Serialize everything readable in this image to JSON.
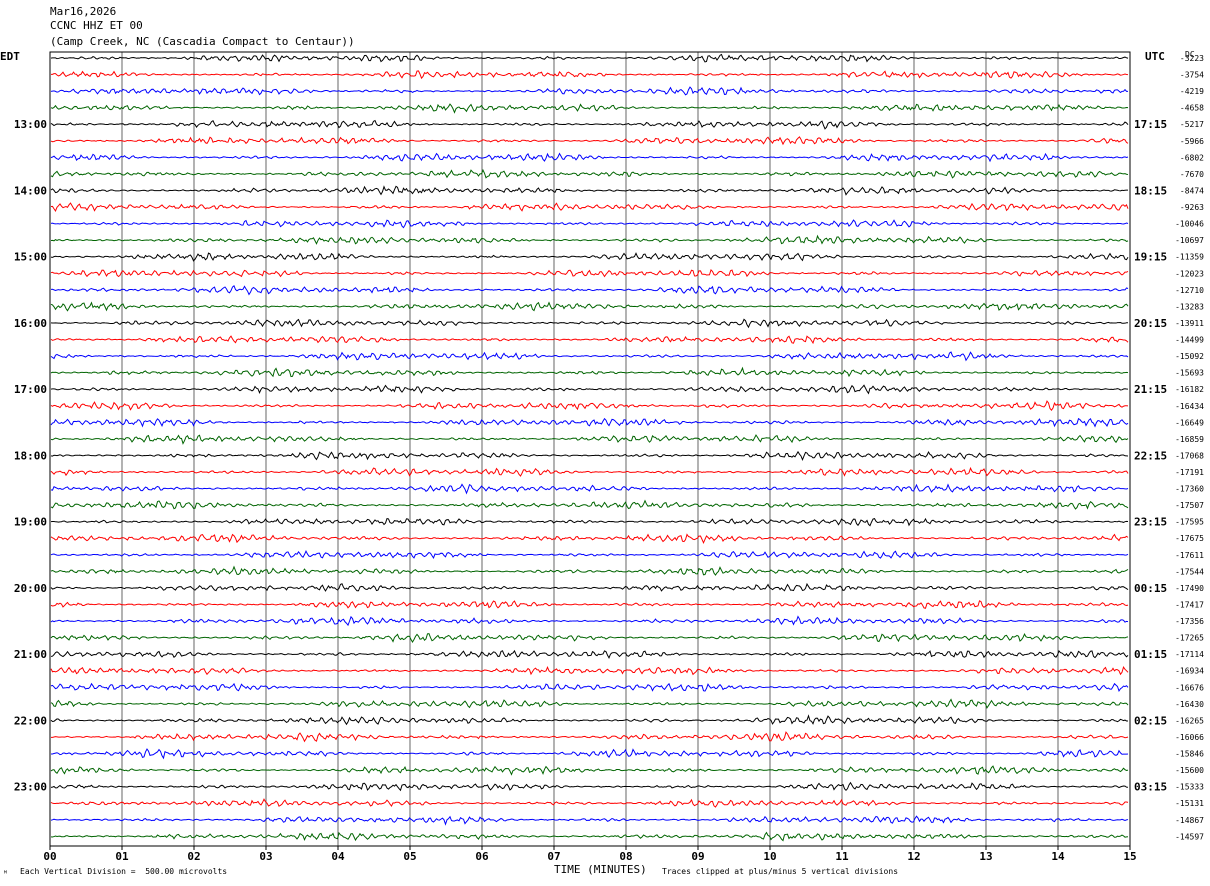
{
  "header": {
    "date": "Mar16,2026",
    "station": "CCNC HHZ ET 00",
    "location": "(Camp Creek, NC (Cascadia Compact to Centaur))"
  },
  "left_timezone": "EDT",
  "right_timezone": "UTC",
  "right_corner_label": "DC",
  "footer": {
    "scale_note": "Each Vertical Division =  500.00 microvolts",
    "clip_note": "Traces clipped at plus/minus 5 vertical divisions",
    "corner_mark": "ᴹ"
  },
  "chart_data": {
    "type": "line",
    "title": "",
    "xlabel": "TIME (MINUTES)",
    "ylabel": "",
    "xlim": [
      0,
      15
    ],
    "x_ticks": [
      "00",
      "01",
      "02",
      "03",
      "04",
      "05",
      "06",
      "07",
      "08",
      "09",
      "10",
      "11",
      "12",
      "13",
      "14",
      "15"
    ],
    "grid": "vertical lines at every minute",
    "trace_colors": [
      "#000000",
      "#ff0000",
      "#0000ff",
      "#006400"
    ],
    "left_hour_labels": [
      "13:00",
      "14:00",
      "15:00",
      "16:00",
      "17:00",
      "18:00",
      "19:00",
      "20:00",
      "21:00",
      "22:00",
      "23:00"
    ],
    "right_hour_labels": [
      "17:15",
      "18:15",
      "19:15",
      "20:15",
      "21:15",
      "22:15",
      "23:15",
      "00:15",
      "01:15",
      "02:15",
      "03:15"
    ],
    "dc_offsets": [
      "-3223",
      "-3754",
      "-4219",
      "-4658",
      "-5217",
      "-5966",
      "-6802",
      "-7670",
      "-8474",
      "-9263",
      "-10046",
      "-10697",
      "-11359",
      "-12023",
      "-12710",
      "-13283",
      "-13911",
      "-14499",
      "-15092",
      "-15693",
      "-16182",
      "-16434",
      "-16649",
      "-16859",
      "-17068",
      "-17191",
      "-17360",
      "-17507",
      "-17595",
      "-17675",
      "-17611",
      "-17544",
      "-17490",
      "-17417",
      "-17356",
      "-17265",
      "-17114",
      "-16934",
      "-16676",
      "-16430",
      "-16265",
      "-16066",
      "-15846",
      "-15600",
      "-15333",
      "-15131",
      "-14867",
      "-14597"
    ]
  }
}
